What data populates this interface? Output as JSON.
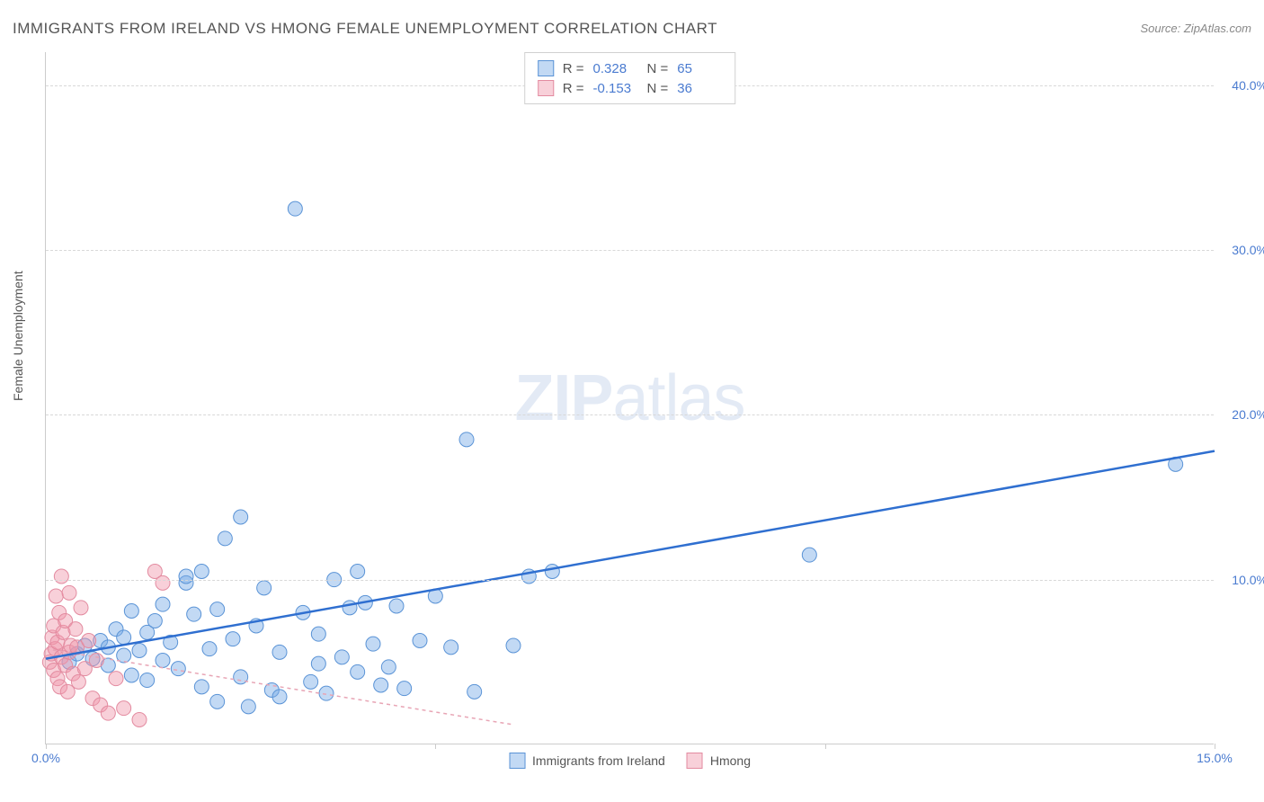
{
  "title": "IMMIGRANTS FROM IRELAND VS HMONG FEMALE UNEMPLOYMENT CORRELATION CHART",
  "source": "Source: ZipAtlas.com",
  "watermark_zip": "ZIP",
  "watermark_atlas": "atlas",
  "chart": {
    "type": "scatter",
    "ylabel": "Female Unemployment",
    "xlim": [
      0,
      15
    ],
    "ylim": [
      0,
      42
    ],
    "x_ticks": [
      0,
      5,
      10,
      15
    ],
    "x_tick_labels": [
      "0.0%",
      "",
      "",
      "15.0%"
    ],
    "y_ticks": [
      10,
      20,
      30,
      40
    ],
    "y_tick_labels": [
      "10.0%",
      "20.0%",
      "30.0%",
      "40.0%"
    ],
    "grid_color": "#d8d8d8",
    "background_color": "#ffffff",
    "axis_color": "#cccccc",
    "tick_label_color": "#4a7bd0",
    "label_color": "#555555",
    "label_fontsize": 14
  },
  "series": [
    {
      "name": "Immigrants from Ireland",
      "marker_fill": "rgba(120, 170, 230, 0.45)",
      "marker_stroke": "#5a93d6",
      "marker_radius": 8,
      "trend_color": "#2f6fd0",
      "trend_width": 2.5,
      "trend_dash": "none",
      "R": "0.328",
      "N": "65",
      "trend_start": [
        0.0,
        5.2
      ],
      "trend_end": [
        15.0,
        17.8
      ],
      "points": [
        [
          0.3,
          5.0
        ],
        [
          0.4,
          5.5
        ],
        [
          0.5,
          6.0
        ],
        [
          0.6,
          5.2
        ],
        [
          0.7,
          6.3
        ],
        [
          0.8,
          4.8
        ],
        [
          0.8,
          5.9
        ],
        [
          0.9,
          7.0
        ],
        [
          1.0,
          5.4
        ],
        [
          1.0,
          6.5
        ],
        [
          1.1,
          4.2
        ],
        [
          1.1,
          8.1
        ],
        [
          1.2,
          5.7
        ],
        [
          1.3,
          6.8
        ],
        [
          1.3,
          3.9
        ],
        [
          1.4,
          7.5
        ],
        [
          1.5,
          5.1
        ],
        [
          1.5,
          8.5
        ],
        [
          1.6,
          6.2
        ],
        [
          1.7,
          4.6
        ],
        [
          1.8,
          9.8
        ],
        [
          1.8,
          10.2
        ],
        [
          1.9,
          7.9
        ],
        [
          2.0,
          3.5
        ],
        [
          2.0,
          10.5
        ],
        [
          2.1,
          5.8
        ],
        [
          2.2,
          2.6
        ],
        [
          2.2,
          8.2
        ],
        [
          2.3,
          12.5
        ],
        [
          2.4,
          6.4
        ],
        [
          2.5,
          13.8
        ],
        [
          2.5,
          4.1
        ],
        [
          2.6,
          2.3
        ],
        [
          2.7,
          7.2
        ],
        [
          2.8,
          9.5
        ],
        [
          2.9,
          3.3
        ],
        [
          3.0,
          5.6
        ],
        [
          3.0,
          2.9
        ],
        [
          3.2,
          32.5
        ],
        [
          3.3,
          8.0
        ],
        [
          3.4,
          3.8
        ],
        [
          3.5,
          4.9
        ],
        [
          3.5,
          6.7
        ],
        [
          3.6,
          3.1
        ],
        [
          3.7,
          10.0
        ],
        [
          3.8,
          5.3
        ],
        [
          3.9,
          8.3
        ],
        [
          4.0,
          10.5
        ],
        [
          4.0,
          4.4
        ],
        [
          4.1,
          8.6
        ],
        [
          4.2,
          6.1
        ],
        [
          4.3,
          3.6
        ],
        [
          4.4,
          4.7
        ],
        [
          4.5,
          8.4
        ],
        [
          4.6,
          3.4
        ],
        [
          4.8,
          6.3
        ],
        [
          5.0,
          9.0
        ],
        [
          5.2,
          5.9
        ],
        [
          5.4,
          18.5
        ],
        [
          5.5,
          3.2
        ],
        [
          6.0,
          6.0
        ],
        [
          6.2,
          10.2
        ],
        [
          6.5,
          10.5
        ],
        [
          9.8,
          11.5
        ],
        [
          14.5,
          17.0
        ]
      ]
    },
    {
      "name": "Hmong",
      "marker_fill": "rgba(240, 150, 170, 0.45)",
      "marker_stroke": "#e38ba0",
      "marker_radius": 8,
      "trend_color": "#e8a5b5",
      "trend_width": 1.5,
      "trend_dash": "4,4",
      "R": "-0.153",
      "N": "36",
      "trend_start": [
        0.0,
        5.8
      ],
      "trend_end": [
        6.0,
        1.2
      ],
      "points": [
        [
          0.05,
          5.0
        ],
        [
          0.07,
          5.5
        ],
        [
          0.08,
          6.5
        ],
        [
          0.1,
          4.5
        ],
        [
          0.1,
          7.2
        ],
        [
          0.12,
          5.8
        ],
        [
          0.13,
          9.0
        ],
        [
          0.15,
          4.0
        ],
        [
          0.15,
          6.2
        ],
        [
          0.17,
          8.0
        ],
        [
          0.18,
          3.5
        ],
        [
          0.2,
          5.3
        ],
        [
          0.2,
          10.2
        ],
        [
          0.22,
          6.8
        ],
        [
          0.25,
          4.8
        ],
        [
          0.25,
          7.5
        ],
        [
          0.28,
          3.2
        ],
        [
          0.3,
          5.6
        ],
        [
          0.3,
          9.2
        ],
        [
          0.32,
          6.0
        ],
        [
          0.35,
          4.3
        ],
        [
          0.38,
          7.0
        ],
        [
          0.4,
          5.9
        ],
        [
          0.42,
          3.8
        ],
        [
          0.45,
          8.3
        ],
        [
          0.5,
          4.6
        ],
        [
          0.55,
          6.3
        ],
        [
          0.6,
          2.8
        ],
        [
          0.65,
          5.1
        ],
        [
          0.7,
          2.4
        ],
        [
          0.8,
          1.9
        ],
        [
          0.9,
          4.0
        ],
        [
          1.0,
          2.2
        ],
        [
          1.2,
          1.5
        ],
        [
          1.4,
          10.5
        ],
        [
          1.5,
          9.8
        ]
      ]
    }
  ],
  "legend": {
    "top_rows": [
      {
        "series_idx": 0,
        "R_label": "R =",
        "R_value": "0.328",
        "N_label": "N =",
        "N_value": "65"
      },
      {
        "series_idx": 1,
        "R_label": "R =",
        "R_value": "-0.153",
        "N_label": "N =",
        "N_value": "36"
      }
    ],
    "bottom_items": [
      {
        "series_idx": 0,
        "label": "Immigrants from Ireland"
      },
      {
        "series_idx": 1,
        "label": "Hmong"
      }
    ]
  }
}
